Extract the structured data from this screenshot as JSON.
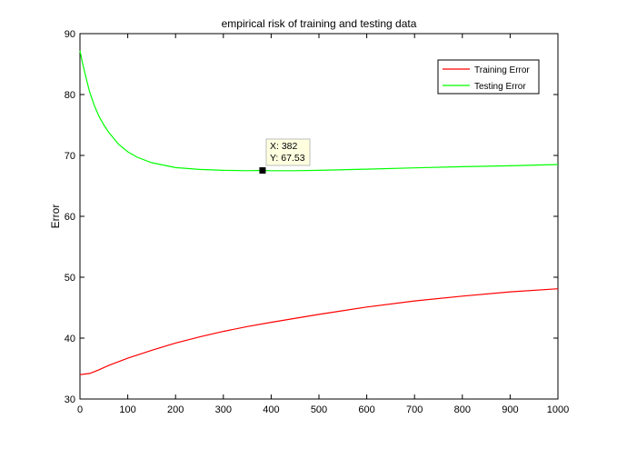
{
  "chart_data": {
    "type": "line",
    "title": "empirical risk of training and testing data",
    "xlabel": "",
    "ylabel": "Error",
    "xlim": [
      0,
      1000
    ],
    "ylim": [
      30,
      90
    ],
    "xticks": [
      0,
      100,
      200,
      300,
      400,
      500,
      600,
      700,
      800,
      900,
      1000
    ],
    "yticks": [
      30,
      40,
      50,
      60,
      70,
      80,
      90
    ],
    "grid": false,
    "legend_position": "top-right",
    "series": [
      {
        "name": "Training Error",
        "color": "#ff0000",
        "x": [
          0,
          10,
          20,
          30,
          40,
          60,
          80,
          100,
          150,
          200,
          250,
          300,
          350,
          400,
          500,
          600,
          700,
          800,
          900,
          1000
        ],
        "y": [
          34.0,
          34.1,
          34.2,
          34.5,
          34.8,
          35.5,
          36.1,
          36.7,
          38.0,
          39.2,
          40.2,
          41.1,
          41.9,
          42.6,
          43.9,
          45.1,
          46.1,
          46.9,
          47.6,
          48.1
        ]
      },
      {
        "name": "Testing Error",
        "color": "#00ff00",
        "x": [
          0,
          5,
          10,
          20,
          30,
          40,
          50,
          60,
          80,
          100,
          120,
          150,
          200,
          250,
          300,
          350,
          382,
          400,
          450,
          500,
          600,
          700,
          800,
          900,
          1000
        ],
        "y": [
          87.2,
          85.3,
          83.6,
          80.5,
          78.2,
          76.4,
          75.0,
          73.8,
          71.9,
          70.6,
          69.7,
          68.8,
          68.0,
          67.7,
          67.55,
          67.5,
          67.53,
          67.5,
          67.5,
          67.55,
          67.75,
          67.95,
          68.15,
          68.3,
          68.5
        ]
      }
    ],
    "datatip": {
      "x": 382,
      "y": 67.53,
      "x_text": "X: 382",
      "y_text": "Y: 67.53"
    }
  }
}
